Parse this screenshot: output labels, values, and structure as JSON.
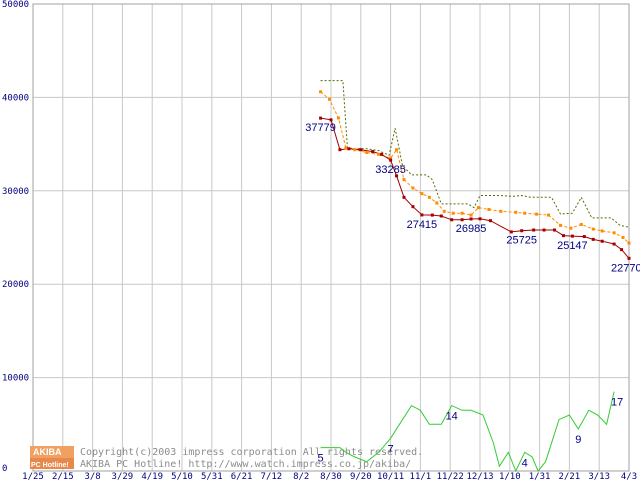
{
  "chart_data": {
    "type": "line",
    "title": "",
    "xlabel": "",
    "ylabel": "",
    "ylim": [
      0,
      50000
    ],
    "grid": true,
    "y_ticks": [
      "0",
      "10000",
      "20000",
      "30000",
      "40000",
      "50000"
    ],
    "x_tick_labels": [
      "1/25",
      "2/15",
      "3/8",
      "3/29",
      "4/19",
      "5/10",
      "5/31",
      "6/21",
      "7/12",
      "8/2",
      "8/30",
      "9/20",
      "10/11",
      "11/1",
      "11/22",
      "12/13",
      "1/10",
      "1/31",
      "2/21",
      "3/13",
      "4/3"
    ],
    "x": [
      0,
      1,
      2,
      3,
      4,
      5,
      6,
      7,
      8,
      9,
      10,
      11,
      12,
      13,
      14,
      15,
      16,
      17,
      18,
      19,
      20
    ],
    "series": [
      {
        "role": "max-price",
        "color": "#556b00",
        "style": "dotted",
        "points": [
          [
            9.65,
            41800
          ],
          [
            10.0,
            41800
          ],
          [
            10.4,
            41800
          ],
          [
            10.55,
            34600
          ],
          [
            10.8,
            34500
          ],
          [
            11.2,
            34500
          ],
          [
            11.6,
            34300
          ],
          [
            11.95,
            33800
          ],
          [
            12.15,
            36700
          ],
          [
            12.4,
            32700
          ],
          [
            12.7,
            31700
          ],
          [
            13.0,
            31700
          ],
          [
            13.2,
            31700
          ],
          [
            13.4,
            31200
          ],
          [
            13.7,
            28600
          ],
          [
            14.0,
            28600
          ],
          [
            14.3,
            28600
          ],
          [
            14.6,
            28600
          ],
          [
            14.8,
            28200
          ],
          [
            15.0,
            29500
          ],
          [
            15.3,
            29500
          ],
          [
            15.6,
            29500
          ],
          [
            16.1,
            29400
          ],
          [
            16.4,
            29500
          ],
          [
            16.7,
            29300
          ],
          [
            17.0,
            29300
          ],
          [
            17.4,
            29300
          ],
          [
            17.7,
            27500
          ],
          [
            18.1,
            27600
          ],
          [
            18.4,
            29300
          ],
          [
            18.75,
            27100
          ],
          [
            19.05,
            27100
          ],
          [
            19.4,
            27100
          ],
          [
            19.7,
            26300
          ],
          [
            20.0,
            26100
          ]
        ]
      },
      {
        "role": "average-price",
        "color": "#ff8c00",
        "style": "dashed",
        "points": [
          [
            9.65,
            40600
          ],
          [
            9.95,
            39800
          ],
          [
            10.25,
            37800
          ],
          [
            10.5,
            34600
          ],
          [
            10.8,
            34400
          ],
          [
            11.2,
            34100
          ],
          [
            11.6,
            33900
          ],
          [
            12.0,
            33500
          ],
          [
            12.2,
            34400
          ],
          [
            12.45,
            31200
          ],
          [
            12.75,
            30300
          ],
          [
            13.05,
            29700
          ],
          [
            13.3,
            29300
          ],
          [
            13.55,
            28700
          ],
          [
            13.8,
            27800
          ],
          [
            14.1,
            27600
          ],
          [
            14.4,
            27600
          ],
          [
            14.7,
            27400
          ],
          [
            14.95,
            28200
          ],
          [
            15.3,
            28000
          ],
          [
            15.7,
            27800
          ],
          [
            16.2,
            27700
          ],
          [
            16.5,
            27600
          ],
          [
            16.9,
            27500
          ],
          [
            17.3,
            27400
          ],
          [
            17.7,
            26300
          ],
          [
            18.05,
            26000
          ],
          [
            18.4,
            26400
          ],
          [
            18.8,
            25900
          ],
          [
            19.1,
            25700
          ],
          [
            19.5,
            25500
          ],
          [
            19.8,
            25000
          ],
          [
            20.0,
            24400
          ]
        ]
      },
      {
        "role": "min-price",
        "color": "#a50000",
        "style": "solid",
        "points": [
          [
            9.65,
            37779
          ],
          [
            10.0,
            37600
          ],
          [
            10.3,
            34400
          ],
          [
            10.6,
            34500
          ],
          [
            11.0,
            34400
          ],
          [
            11.4,
            34200
          ],
          [
            11.7,
            33900
          ],
          [
            12.0,
            33285
          ],
          [
            12.2,
            31600
          ],
          [
            12.45,
            29300
          ],
          [
            12.75,
            28300
          ],
          [
            13.05,
            27415
          ],
          [
            13.4,
            27400
          ],
          [
            13.7,
            27300
          ],
          [
            14.05,
            26900
          ],
          [
            14.4,
            26900
          ],
          [
            14.7,
            26985
          ],
          [
            15.0,
            27000
          ],
          [
            15.35,
            26800
          ],
          [
            16.05,
            25600
          ],
          [
            16.4,
            25725
          ],
          [
            16.8,
            25800
          ],
          [
            17.15,
            25800
          ],
          [
            17.5,
            25800
          ],
          [
            17.8,
            25200
          ],
          [
            18.1,
            25147
          ],
          [
            18.5,
            25100
          ],
          [
            18.8,
            24800
          ],
          [
            19.1,
            24600
          ],
          [
            19.5,
            24300
          ],
          [
            19.75,
            23700
          ],
          [
            20.0,
            22770
          ]
        ]
      },
      {
        "role": "store-count",
        "color": "#33cc33",
        "style": "solid",
        "points": [
          [
            9.65,
            5
          ],
          [
            10.0,
            5
          ],
          [
            10.3,
            5
          ],
          [
            10.5,
            4
          ],
          [
            10.8,
            3
          ],
          [
            11.2,
            2
          ],
          [
            11.6,
            4
          ],
          [
            12.0,
            7
          ],
          [
            12.3,
            10
          ],
          [
            12.7,
            14
          ],
          [
            13.0,
            13
          ],
          [
            13.3,
            10
          ],
          [
            13.7,
            10
          ],
          [
            14.05,
            14
          ],
          [
            14.4,
            13
          ],
          [
            14.7,
            13
          ],
          [
            15.1,
            12
          ],
          [
            15.45,
            6
          ],
          [
            15.65,
            1
          ],
          [
            15.95,
            4
          ],
          [
            16.2,
            0
          ],
          [
            16.5,
            4
          ],
          [
            16.75,
            3
          ],
          [
            16.95,
            0
          ],
          [
            17.2,
            2
          ],
          [
            17.65,
            11
          ],
          [
            18.0,
            12
          ],
          [
            18.3,
            9
          ],
          [
            18.65,
            13
          ],
          [
            18.95,
            12
          ],
          [
            19.25,
            10
          ],
          [
            19.5,
            17
          ]
        ],
        "y_scale_note": ""
      }
    ],
    "data_labels": [
      {
        "text": "37779",
        "x": 9.65,
        "y": 37779,
        "series": "min-price"
      },
      {
        "text": "33285",
        "x": 12.0,
        "y": 33285,
        "series": "min-price"
      },
      {
        "text": "27415",
        "x": 13.05,
        "y": 27415,
        "series": "min-price"
      },
      {
        "text": "26985",
        "x": 14.7,
        "y": 26985,
        "series": "min-price"
      },
      {
        "text": "25725",
        "x": 16.4,
        "y": 25725,
        "series": "min-price"
      },
      {
        "text": "25147",
        "x": 18.1,
        "y": 25147,
        "series": "min-price"
      },
      {
        "text": "22770",
        "x": 20.0,
        "y": 22770,
        "series": "min-price"
      },
      {
        "text": "5",
        "x": 9.65,
        "y": 5,
        "series": "store-count"
      },
      {
        "text": "7",
        "x": 12.0,
        "y": 7,
        "series": "store-count"
      },
      {
        "text": "14",
        "x": 14.05,
        "y": 14,
        "series": "store-count"
      },
      {
        "text": "4",
        "x": 16.5,
        "y": 4,
        "series": "store-count"
      },
      {
        "text": "9",
        "x": 18.3,
        "y": 9,
        "series": "store-count"
      },
      {
        "text": "17",
        "x": 19.5,
        "y": 17,
        "series": "store-count"
      }
    ]
  },
  "watermark": {
    "logo_top": "AKIBA",
    "logo_bottom": "PC Hotline!",
    "line1": "Copyright(c)2003 impress corporation All rights reserved.",
    "line2": "AKIBA PC Hotline! http://www.watch.impress.co.jp/akiba/"
  },
  "colors": {
    "grid": "#c8c8c8",
    "axis_text": "#000080",
    "logo_orange": "#f0a060"
  }
}
